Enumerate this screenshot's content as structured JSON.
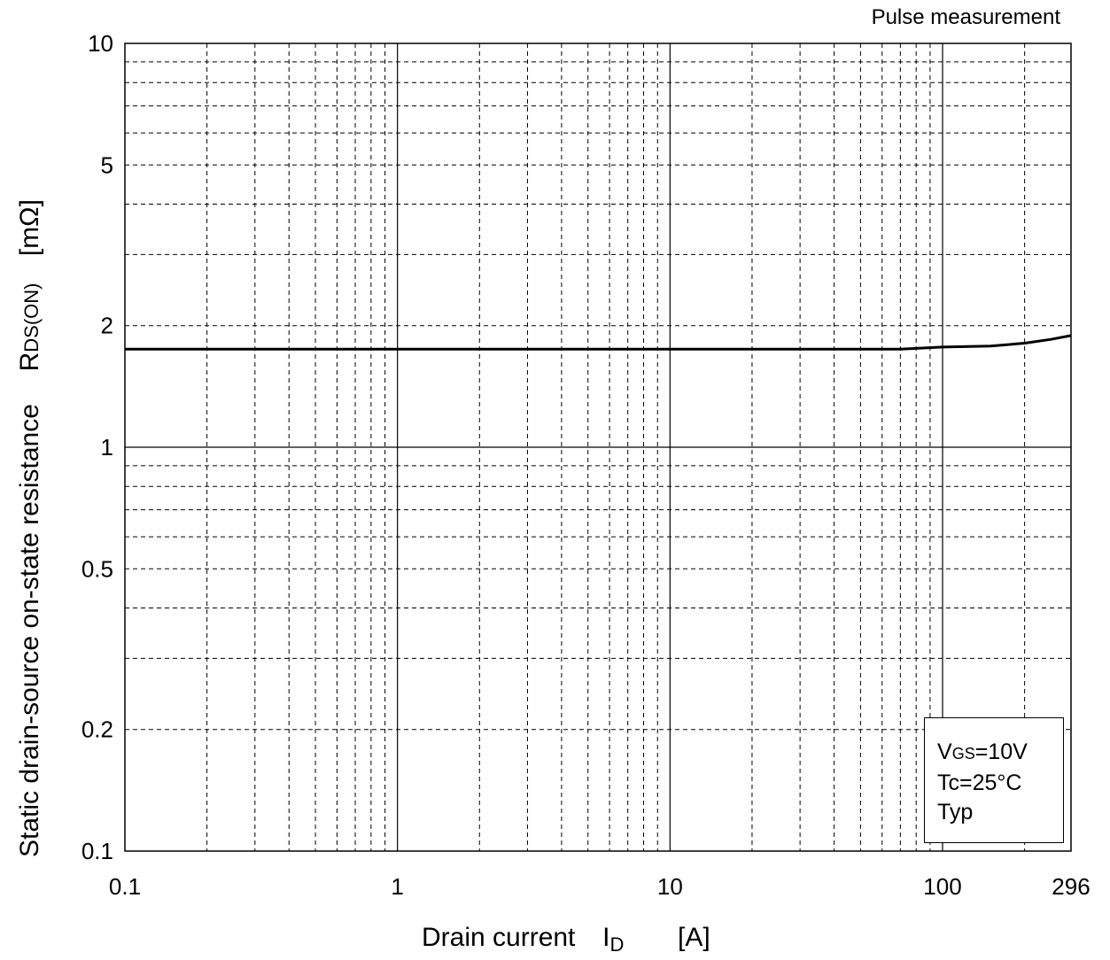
{
  "note": "Pulse measurement",
  "x_title": {
    "main": "Drain current",
    "symbol": "I",
    "sub": "D",
    "unit": "[A]"
  },
  "y_title": {
    "main": "Static drain-source on-state resistance",
    "symbol": "R",
    "sub": "DS(ON)",
    "unit": "[mΩ]"
  },
  "legend": {
    "vgs_symbol": "V",
    "vgs_sub": "GS",
    "vgs_value": "=10V",
    "tc": "Tc=25°C",
    "typ": "Typ"
  },
  "chart_data": {
    "type": "line",
    "x_scale": "log",
    "y_scale": "log",
    "xlim": [
      0.1,
      296
    ],
    "ylim": [
      0.1,
      10
    ],
    "x_ticks": [
      "0.1",
      "1",
      "10",
      "100",
      "296"
    ],
    "y_ticks": [
      "0.1",
      "0.2",
      "0.5",
      "1",
      "2",
      "5",
      "10"
    ],
    "grid": true,
    "legend_position": "bottom-right",
    "series": [
      {
        "x": [
          0.1,
          1,
          10,
          70,
          100,
          150,
          200,
          250,
          296
        ],
        "y": [
          1.75,
          1.75,
          1.75,
          1.75,
          1.77,
          1.78,
          1.81,
          1.85,
          1.89
        ]
      }
    ]
  }
}
